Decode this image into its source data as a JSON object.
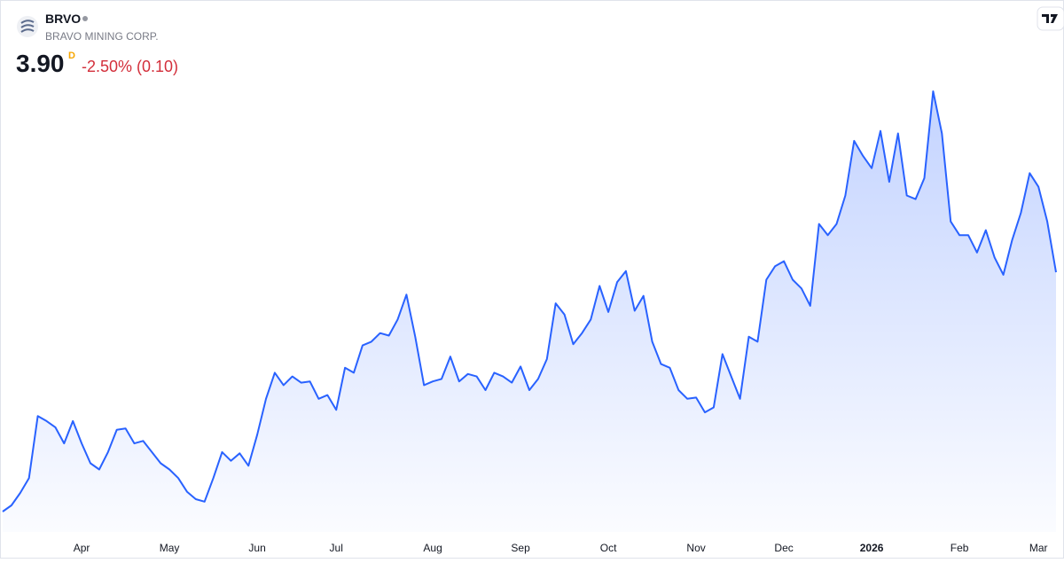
{
  "header": {
    "symbol": "BRVO",
    "company": "BRAVO MINING CORP.",
    "price": "3.90",
    "price_flag": "D",
    "change": "-2.50% (0.10)"
  },
  "chart_data": {
    "type": "area",
    "color": "#2962ff",
    "categories": [
      null,
      null,
      null,
      null,
      null,
      null,
      null,
      null,
      null,
      "Apr",
      null,
      null,
      null,
      null,
      null,
      null,
      null,
      null,
      null,
      "May",
      null,
      null,
      null,
      null,
      null,
      null,
      null,
      null,
      null,
      "Jun",
      null,
      null,
      null,
      null,
      null,
      null,
      null,
      null,
      "Jul",
      null,
      null,
      null,
      null,
      null,
      null,
      null,
      null,
      null,
      null,
      "Aug",
      null,
      null,
      null,
      null,
      null,
      null,
      null,
      null,
      null,
      "Sep",
      null,
      null,
      null,
      null,
      null,
      null,
      null,
      null,
      null,
      "Oct",
      null,
      null,
      null,
      null,
      null,
      null,
      null,
      null,
      null,
      "Nov",
      null,
      null,
      null,
      null,
      null,
      null,
      null,
      null,
      null,
      "Dec",
      null,
      null,
      null,
      null,
      null,
      null,
      null,
      null,
      null,
      "2026",
      null,
      null,
      null,
      null,
      null,
      null,
      null,
      null,
      null,
      "Feb",
      null,
      null,
      null,
      null,
      null,
      null,
      null,
      null,
      "Mar",
      null,
      null
    ],
    "values": [
      1.97,
      2.02,
      2.12,
      2.24,
      2.74,
      2.7,
      2.65,
      2.52,
      2.7,
      2.52,
      2.36,
      2.31,
      2.45,
      2.63,
      2.64,
      2.52,
      2.54,
      2.45,
      2.36,
      2.31,
      2.24,
      2.13,
      2.07,
      2.05,
      2.24,
      2.45,
      2.38,
      2.44,
      2.34,
      2.59,
      2.88,
      3.09,
      2.99,
      3.06,
      3.01,
      3.02,
      2.88,
      2.91,
      2.79,
      3.13,
      3.09,
      3.31,
      3.34,
      3.41,
      3.39,
      3.52,
      3.72,
      3.38,
      2.99,
      3.02,
      3.04,
      3.22,
      3.02,
      3.08,
      3.06,
      2.95,
      3.09,
      3.06,
      3.01,
      3.14,
      2.95,
      3.04,
      3.2,
      3.65,
      3.56,
      3.32,
      3.41,
      3.52,
      3.79,
      3.58,
      3.82,
      3.91,
      3.59,
      3.71,
      3.34,
      3.16,
      3.13,
      2.95,
      2.88,
      2.89,
      2.77,
      2.81,
      3.24,
      3.06,
      2.88,
      3.38,
      3.34,
      3.84,
      3.95,
      3.99,
      3.84,
      3.77,
      3.63,
      4.29,
      4.2,
      4.29,
      4.52,
      4.96,
      4.84,
      4.74,
      5.04,
      4.63,
      5.02,
      4.52,
      4.49,
      4.66,
      5.36,
      5.02,
      4.31,
      4.2,
      4.2,
      4.06,
      4.24,
      4.02,
      3.88,
      4.16,
      4.38,
      4.7,
      4.59,
      4.31,
      3.9
    ]
  }
}
